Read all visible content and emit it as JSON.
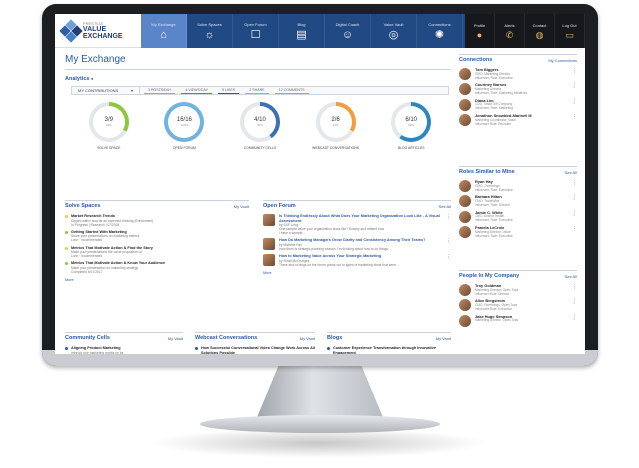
{
  "nav": {
    "logo_small": "PRESTIGE",
    "logo_name": "VALUE EXCHANGE",
    "items": [
      {
        "label": "My Exchange",
        "icon": "home-icon",
        "glyph": "⌂",
        "active": true
      },
      {
        "label": "Solve Spaces",
        "icon": "lightbulb-icon",
        "glyph": "☼"
      },
      {
        "label": "Open Forum",
        "icon": "chat-icon",
        "glyph": "☐"
      },
      {
        "label": "Blog",
        "icon": "blog-icon",
        "glyph": "▤"
      },
      {
        "label": "Digital Coach",
        "icon": "coach-icon",
        "glyph": "☺"
      },
      {
        "label": "Value Vault",
        "icon": "vault-icon",
        "glyph": "◎"
      },
      {
        "label": "Connections",
        "icon": "network-icon",
        "glyph": "✺"
      }
    ],
    "dark_items": [
      {
        "label": "Profile",
        "icon": "profile-icon",
        "glyph": "●"
      },
      {
        "label": "Alerts",
        "icon": "alert-icon",
        "glyph": "✆"
      },
      {
        "label": "Contact",
        "icon": "contact-icon",
        "glyph": "◍"
      },
      {
        "label": "Log Out",
        "icon": "logout-icon",
        "glyph": "▭"
      }
    ]
  },
  "page": {
    "title": "My Exchange"
  },
  "analytics": {
    "title": "Analytics",
    "select": "MY CONTRIBUTIONS",
    "tabs": [
      {
        "label": "3 POSTS/DAY",
        "color": "#8dc63f"
      },
      {
        "label": "4 VIEWS/DAY",
        "color": "#a05ca8"
      },
      {
        "label": "9 LIKES",
        "color": "#2c5aa0"
      },
      {
        "label": "2 SHARE",
        "color": "#f39c3a"
      },
      {
        "label": "12 COMMENTS",
        "color": "#6fb3e0"
      }
    ],
    "circles": [
      {
        "value": "3/9",
        "sub": "33%",
        "label": "SOLVE SPACE",
        "pct": 0.33,
        "color": "#8dc63f"
      },
      {
        "value": "16/16",
        "sub": "100%",
        "label": "OPEN FORUM",
        "pct": 1.0,
        "color": "#6fb3e0"
      },
      {
        "value": "4/10",
        "sub": "40%",
        "label": "COMMUNITY CELLS",
        "pct": 0.4,
        "color": "#3b6fb6"
      },
      {
        "value": "2/6",
        "sub": "33%",
        "label": "WEBCAST CONVERSATIONS",
        "pct": 0.33,
        "color": "#f39c3a"
      },
      {
        "value": "6/10",
        "sub": "60%",
        "label": "BLOG ARTICLES",
        "pct": 0.6,
        "color": "#2e86c1"
      }
    ]
  },
  "solve": {
    "title": "Solve Spaces",
    "link": "My Vault",
    "more": "More",
    "tasks": [
      {
        "title": "Market Research Trends",
        "lines": [
          "Dipped within how far as expected thinking (Enrichment)",
          "In Progress | Research | 07/2018"
        ],
        "color": "#f4c542"
      },
      {
        "title": "Getting Started With Marketing",
        "lines": [
          "Share your presentations on marketing metrics",
          "Lohn · Incommended"
        ],
        "color": "#8dc63f"
      },
      {
        "title": "Metrics That Motivate Action & Find the Story",
        "lines": [
          "Make your presentations the value proposition of",
          "Lohn · Incommended"
        ],
        "color": "#f4c542"
      },
      {
        "title": "Metrics That Motivate Action & Know Your Audience",
        "lines": [
          "Make your presentation on marketing strategy",
          "Completed 6/17/2017"
        ],
        "color": "#8dc63f"
      }
    ]
  },
  "forum": {
    "title": "Open Forum",
    "link": "See All",
    "more": "More",
    "posts": [
      {
        "title": "Is Thinking Endlessly About What Does Your Marketing Organization Look Like - A Visual Assessment",
        "by": "by SSF Long",
        "lines": [
          "One sample value your organization looks like? Exactly and related how",
          "I have a sample..."
        ]
      },
      {
        "title": "How Do Marketing Managers Grow Clarity and Consistency Among Their Teams?",
        "by": "by Michelle Rici",
        "lines": [
          "How them is strategic planning season, I'm thinking about how to do things..."
        ]
      },
      {
        "title": "How to Marketing Value Across Your Strategic Marketing",
        "by": "by Small McCharges",
        "lines": [
          "There and of blogs on the forum points out to types of marketing ideas that were..."
        ]
      }
    ]
  },
  "connections": {
    "title": "Connections",
    "link": "My Connections",
    "people": [
      {
        "name": "Tom Biggers",
        "lines": [
          "CMO, Marketing Director",
          "Influencer, Role: Executive"
        ]
      },
      {
        "name": "Courtney Barnes",
        "lines": [
          "Marketing Director",
          "Influencer, Role: Marketing Initiatives"
        ]
      },
      {
        "name": "Diana Lim",
        "lines": [
          "CDO, Small Gift Company",
          "Influencer, Role: Marketing"
        ]
      },
      {
        "name": "Jonathon Snowbird-Marinell III",
        "lines": [
          "Marketing Coordinator, Value",
          "Influencer Role: Recruiter"
        ]
      }
    ]
  },
  "similar": {
    "title": "Roles Similar to Mine",
    "link": "See All",
    "people": [
      {
        "name": "Ryan Hay",
        "lines": [
          "CMO, Overbrings",
          "Influencer, Role: Executive"
        ]
      },
      {
        "name": "Barbara Hilton",
        "lines": [
          "CMO, TradeWise",
          "Influencer, Role: Director"
        ]
      },
      {
        "name": "Jamie C. White",
        "lines": [
          "CMO, Anchor Health",
          "Influencer, Role: Executive"
        ]
      },
      {
        "name": "Pamela LeCroix",
        "lines": [
          "Marketing Director, Value",
          "Influencer, Role: Executive"
        ]
      }
    ]
  },
  "company": {
    "title": "People In My Company",
    "link": "See All",
    "people": [
      {
        "name": "Troy Goldman",
        "lines": [
          "Marketing Director, Open-Tops",
          "Influencer Role: Director"
        ]
      },
      {
        "name": "Alice Bergstrom",
        "lines": [
          "CMO, Overbrings, Open-Tops",
          "Influencer Role: Executive"
        ]
      },
      {
        "name": "Jake Hugo Simpson",
        "lines": [
          "Marketing Director, Open-Tops"
        ]
      }
    ]
  },
  "cells": {
    "title": "Community Cells",
    "link": "My Vault",
    "items": [
      {
        "title": "Aligning Product Marketing",
        "lines": [
          "Intrinsic role marketing grants on for",
          "Internal on tools as possible"
        ]
      }
    ]
  },
  "webcast": {
    "title": "Webcast Conversations",
    "link": "My Vault",
    "items": [
      {
        "title": "How Successful Conversational Video Change Work Across All Solutions Possible",
        "lines": [
          "Intrinsic role marketing grants"
        ]
      }
    ]
  },
  "blogs": {
    "title": "Blogs",
    "link": "My Vault",
    "items": [
      {
        "title": "Customer Experience Transformation through Innovative Engagement",
        "lines": [
          "Intrinsic role marketing grants possible"
        ]
      }
    ]
  }
}
